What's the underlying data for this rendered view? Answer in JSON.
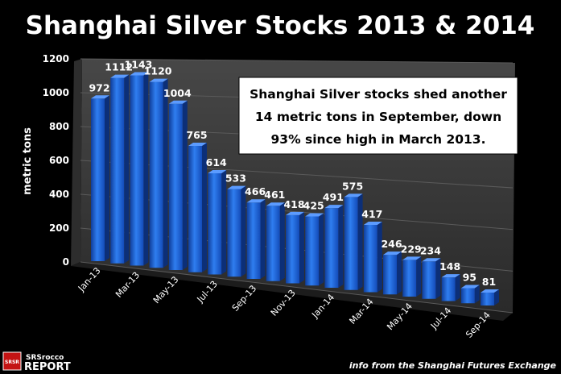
{
  "chart_data": {
    "type": "bar",
    "title": "Shanghai Silver Stocks 2013 & 2014",
    "ylabel": "metric tons",
    "xlabel": "",
    "ylim": [
      0,
      1200
    ],
    "yticks": [
      "0",
      "200",
      "400",
      "600",
      "800",
      "1000",
      "1200"
    ],
    "categories": [
      "Jan-13",
      "Feb-13",
      "Mar-13",
      "Apr-13",
      "May-13",
      "Jun-13",
      "Jul-13",
      "Aug-13",
      "Sep-13",
      "Oct-13",
      "Nov-13",
      "Dec-13",
      "Jan-14",
      "Feb-14",
      "Mar-14",
      "Apr-14",
      "May-14",
      "Jun-14",
      "Jul-14",
      "Aug-14",
      "Sep-14"
    ],
    "tick_labels": [
      "Jan-13",
      "Mar-13",
      "May-13",
      "Jul-13",
      "Sep-13",
      "Nov-13",
      "Jan-14",
      "Mar-14",
      "May-14",
      "Jul-14",
      "Sep-14"
    ],
    "values": [
      972,
      1112,
      1143,
      1120,
      1004,
      765,
      614,
      533,
      466,
      461,
      418,
      425,
      491,
      575,
      417,
      246,
      229,
      234,
      148,
      95,
      81
    ],
    "bar_color": "#1f66d8",
    "annotation": [
      "Shanghai Silver stocks shed another",
      "14 metric tons in September, down",
      "93% since high in March 2013."
    ]
  },
  "source": "info from the Shanghai Futures Exchange",
  "logo": {
    "top": "SRSrocco",
    "bottom": "REPORT",
    "badge": "SRSR"
  }
}
